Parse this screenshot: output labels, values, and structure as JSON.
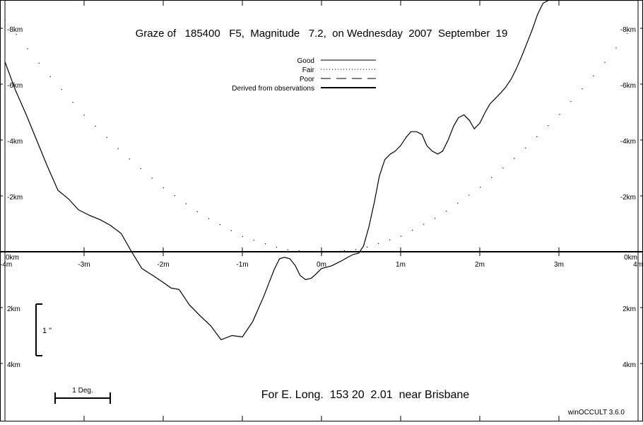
{
  "title": "Graze of   185400   F5,  Magnitude   7.2,  on Wednesday  2007  September  19",
  "location_caption": "For E. Long.  153 20  2.01  near Brisbane",
  "software": "winOCCULT 3.6.0",
  "legend": {
    "placement": "top-center",
    "items": [
      {
        "label": "Good",
        "style": "solid-thin"
      },
      {
        "label": "Fair",
        "style": "dotted"
      },
      {
        "label": "Poor",
        "style": "long-dash"
      },
      {
        "label": "Derived from observations",
        "style": "solid-thick"
      }
    ]
  },
  "scale_bar": {
    "label": "1 Deg."
  },
  "vertical_scale": {
    "label": "1 \""
  },
  "chart_data": {
    "type": "line",
    "title": "Graze of   185400   F5,  Magnitude   7.2,  on Wednesday  2007  September  19",
    "x_ticks": [
      "-4m",
      "-3m",
      "-2m",
      "-1m",
      "0m",
      "1m",
      "2m",
      "3m",
      "4m"
    ],
    "x_tick_values": [
      -4,
      -3,
      -2,
      -1,
      0,
      1,
      2,
      3,
      4
    ],
    "xlim": [
      -4,
      4
    ],
    "y_ticks_left": [
      "-8km",
      "-6km",
      "-4km",
      "-2km",
      "0km",
      "2km",
      "4km"
    ],
    "y_ticks_right": [
      "-8km",
      "-6km",
      "-4km",
      "-2km",
      "0km",
      "2km",
      "4km"
    ],
    "y_tick_values": [
      -8,
      -6,
      -4,
      -2,
      0,
      2,
      4
    ],
    "ylim": [
      -9,
      6
    ],
    "y_axis_inverted": true,
    "grid": false,
    "series": [
      {
        "name": "Good",
        "style": "solid",
        "x": [
          -4.0,
          -3.87,
          -3.73,
          -3.6,
          -3.47,
          -3.33,
          -3.2,
          -3.07,
          -2.93,
          -2.8,
          -2.67,
          -2.53,
          -2.4,
          -2.27,
          -2.13,
          -2.0,
          -1.9,
          -1.8,
          -1.67,
          -1.53,
          -1.4,
          -1.27,
          -1.13,
          -1.0,
          -0.87,
          -0.73,
          -0.6,
          -0.53,
          -0.47,
          -0.4,
          -0.33,
          -0.27,
          -0.2,
          -0.13,
          -0.07,
          0.0,
          0.07,
          0.13,
          0.2,
          0.27,
          0.33,
          0.4,
          0.47,
          0.53,
          0.6,
          0.67,
          0.73,
          0.8,
          0.87,
          0.93,
          1.0,
          1.07,
          1.13,
          1.2,
          1.27,
          1.33,
          1.4,
          1.47,
          1.53,
          1.6,
          1.67,
          1.73,
          1.8,
          1.87,
          1.93,
          2.0,
          2.07,
          2.13,
          2.2,
          2.27,
          2.33,
          2.4,
          2.47,
          2.53,
          2.6,
          2.67,
          2.73,
          2.8,
          2.87,
          2.93,
          3.0,
          3.07,
          3.13,
          3.2,
          3.27,
          3.33,
          3.4,
          3.47,
          3.53,
          3.6,
          3.67,
          3.73,
          3.8,
          3.87,
          3.93,
          4.0
        ],
        "y": [
          -6.8,
          -5.8,
          -4.9,
          -4.0,
          -3.1,
          -2.2,
          -1.9,
          -1.5,
          -1.3,
          -1.15,
          -0.95,
          -0.65,
          0.0,
          0.6,
          0.85,
          1.1,
          1.3,
          1.35,
          1.9,
          2.3,
          2.65,
          3.15,
          3.0,
          3.05,
          2.5,
          1.6,
          0.65,
          0.25,
          0.2,
          0.25,
          0.5,
          0.85,
          1.0,
          0.95,
          0.8,
          0.6,
          0.55,
          0.5,
          0.4,
          0.3,
          0.2,
          0.1,
          0.05,
          -0.2,
          -0.9,
          -1.8,
          -2.7,
          -3.3,
          -3.5,
          -3.6,
          -3.8,
          -4.1,
          -4.3,
          -4.3,
          -4.2,
          -3.8,
          -3.6,
          -3.5,
          -3.6,
          -4.0,
          -4.5,
          -4.8,
          -4.9,
          -4.7,
          -4.4,
          -4.6,
          -5.0,
          -5.3,
          -5.5,
          -5.7,
          -5.9,
          -6.2,
          -6.6,
          -7.0,
          -7.5,
          -8.0,
          -8.5,
          -8.9,
          -9.0,
          -9.0,
          -9.0,
          -9.0,
          -9.0,
          -9.0,
          -9.0,
          -9.0,
          -9.0,
          -9.0,
          -9.0,
          -9.0,
          -9.0,
          -9.0,
          -9.0,
          -9.0,
          -9.0,
          -9.0
        ]
      },
      {
        "name": "Fair",
        "style": "dotted",
        "x": [
          -4.0,
          -3.5,
          -3.0,
          -2.5,
          -2.0,
          -1.5,
          -1.0,
          -0.5,
          0.0,
          0.5,
          1.0,
          1.5,
          2.0,
          2.5,
          3.0,
          3.5,
          4.0
        ],
        "y": [
          -8.3,
          -6.5,
          -4.9,
          -3.5,
          -2.3,
          -1.3,
          -0.55,
          -0.1,
          0.05,
          -0.1,
          -0.55,
          -1.3,
          -2.3,
          -3.5,
          -4.9,
          -6.5,
          -8.3
        ]
      }
    ]
  }
}
